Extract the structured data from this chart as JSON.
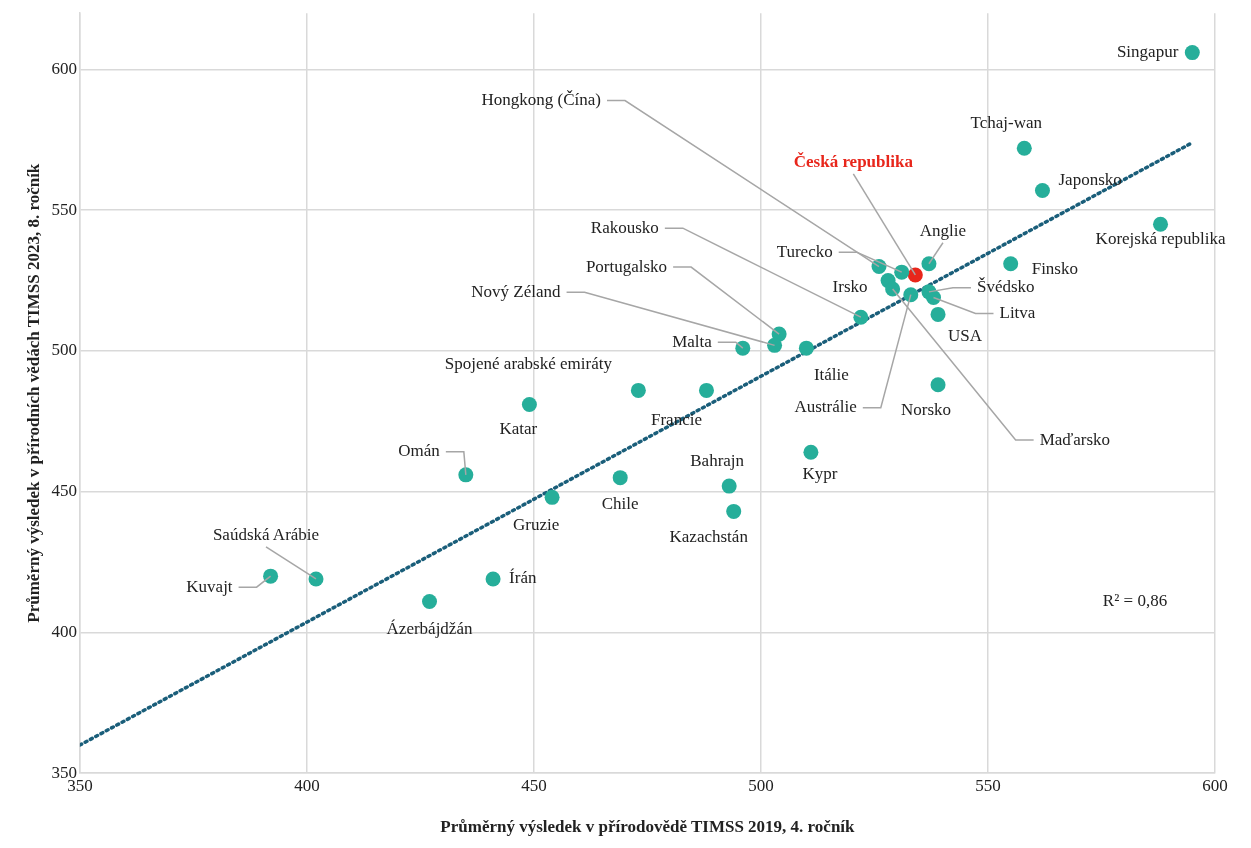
{
  "chart_data": {
    "type": "scatter",
    "xlabel": "Průměrný výsledek v přírodovědě TIMSS 2019, 4. ročník",
    "ylabel": "Průměrný výsledek v přírodních vědách TIMSS 2023, 8. ročník",
    "xlim": [
      350,
      600
    ],
    "xticks": [
      350,
      400,
      450,
      500,
      550,
      600
    ],
    "ylim": [
      350,
      620
    ],
    "yticks": [
      350,
      400,
      450,
      500,
      550,
      600
    ],
    "grid": true,
    "legend": false,
    "marker": "circle",
    "series": [
      {
        "type": "scatter",
        "color": "#26ae9a",
        "x": [
          595,
          558,
          562,
          588,
          555,
          537,
          531,
          526,
          528,
          529,
          533,
          537,
          538,
          539,
          522,
          504,
          503,
          510,
          496,
          539,
          511,
          473,
          488,
          449,
          435,
          454,
          469,
          493,
          494,
          441,
          392,
          402,
          427
        ],
        "values": [
          606,
          572,
          557,
          545,
          531,
          531,
          528,
          530,
          525,
          522,
          520,
          521,
          519,
          513,
          512,
          506,
          502,
          501,
          501,
          488,
          464,
          486,
          486,
          481,
          456,
          448,
          455,
          452,
          443,
          419,
          420,
          419,
          411
        ]
      },
      {
        "type": "scatter",
        "color": "#e8261b",
        "x": [
          534
        ],
        "values": [
          527
        ]
      },
      {
        "type": "line",
        "color": "#1a5e7a",
        "line_style": "dotted",
        "marker": "none",
        "x": [
          350,
          595
        ],
        "values": [
          360,
          574
        ]
      }
    ],
    "annotations": [
      {
        "text": "Singapur",
        "x": 595,
        "y": 606
      },
      {
        "text": "Tchaj-wan",
        "x": 558,
        "y": 572
      },
      {
        "text": "Japonsko",
        "x": 562,
        "y": 557
      },
      {
        "text": "Korejská republika",
        "x": 588,
        "y": 545
      },
      {
        "text": "Finsko",
        "x": 555,
        "y": 531
      },
      {
        "text": "Anglie",
        "x": 537,
        "y": 531
      },
      {
        "text": "Česká republika",
        "x": 534,
        "y": 527
      },
      {
        "text": "Turecko",
        "x": 531,
        "y": 528
      },
      {
        "text": "Hongkong (Čína)",
        "x": 526,
        "y": 530
      },
      {
        "text": "Irsko",
        "x": 528,
        "y": 525
      },
      {
        "text": "Maďarsko",
        "x": 529,
        "y": 522
      },
      {
        "text": "Austrálie",
        "x": 533,
        "y": 520
      },
      {
        "text": "Švédsko",
        "x": 537,
        "y": 521
      },
      {
        "text": "Litva",
        "x": 538,
        "y": 519
      },
      {
        "text": "USA",
        "x": 539,
        "y": 513
      },
      {
        "text": "Rakousko",
        "x": 522,
        "y": 512
      },
      {
        "text": "Portugalsko",
        "x": 504,
        "y": 506
      },
      {
        "text": "Nový Zéland",
        "x": 503,
        "y": 502
      },
      {
        "text": "Itálie",
        "x": 510,
        "y": 501
      },
      {
        "text": "Malta",
        "x": 496,
        "y": 501
      },
      {
        "text": "Norsko",
        "x": 539,
        "y": 488
      },
      {
        "text": "Kypr",
        "x": 511,
        "y": 464
      },
      {
        "text": "Spojené arabské emiráty",
        "x": 473,
        "y": 486
      },
      {
        "text": "Francie",
        "x": 488,
        "y": 486
      },
      {
        "text": "Katar",
        "x": 449,
        "y": 481
      },
      {
        "text": "Omán",
        "x": 435,
        "y": 456
      },
      {
        "text": "Gruzie",
        "x": 454,
        "y": 448
      },
      {
        "text": "Chile",
        "x": 469,
        "y": 455
      },
      {
        "text": "Bahrajn",
        "x": 493,
        "y": 452
      },
      {
        "text": "Kazachstán",
        "x": 494,
        "y": 443
      },
      {
        "text": "Írán",
        "x": 441,
        "y": 419
      },
      {
        "text": "Kuvajt",
        "x": 392,
        "y": 420
      },
      {
        "text": "Saúdská Arábie",
        "x": 402,
        "y": 419
      },
      {
        "text": "Ázerbájdžán",
        "x": 427,
        "y": 411
      },
      "R² = 0,86"
    ]
  }
}
